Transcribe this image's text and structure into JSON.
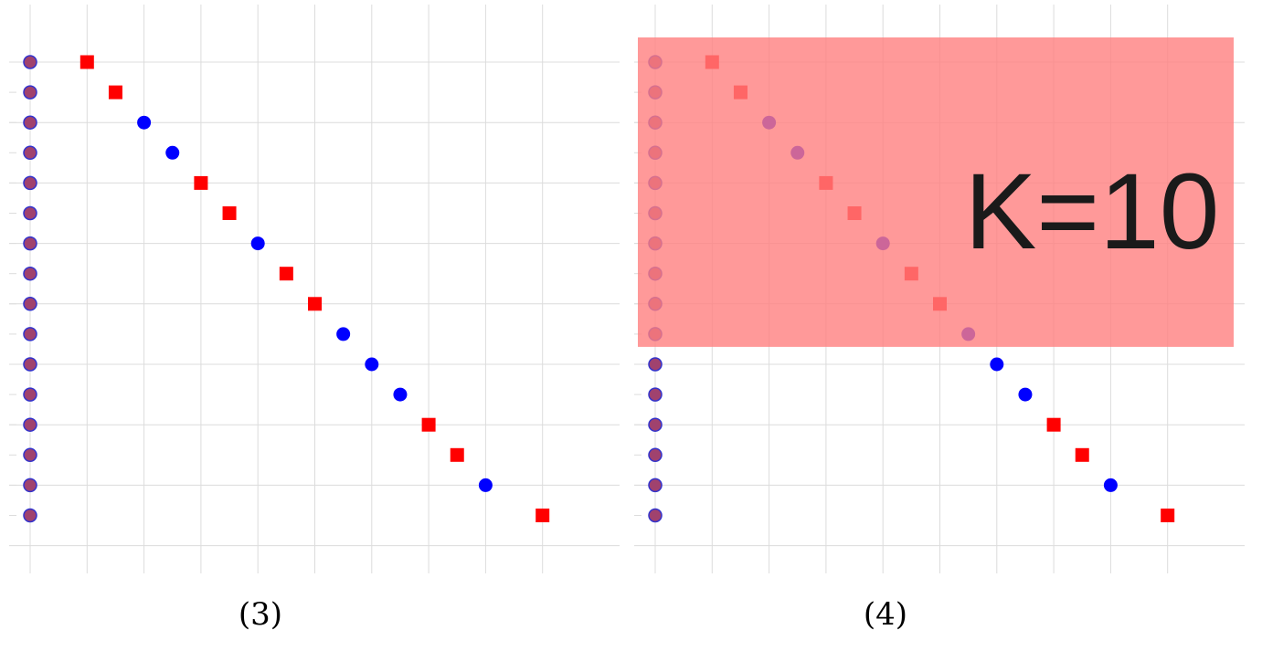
{
  "chart_data": [
    {
      "type": "scatter",
      "caption": "(3)",
      "rank_axis": [
        1,
        2,
        3,
        4,
        5,
        6,
        7,
        8,
        9,
        10,
        11,
        12,
        13,
        14,
        15,
        16
      ],
      "points": [
        {
          "x": 1,
          "y": 1,
          "marker": "square"
        },
        {
          "x": 1.5,
          "y": 2,
          "marker": "square"
        },
        {
          "x": 2,
          "y": 3,
          "marker": "circle"
        },
        {
          "x": 2.5,
          "y": 4,
          "marker": "circle"
        },
        {
          "x": 3,
          "y": 5,
          "marker": "square"
        },
        {
          "x": 3.5,
          "y": 6,
          "marker": "square"
        },
        {
          "x": 4,
          "y": 7,
          "marker": "circle"
        },
        {
          "x": 4.5,
          "y": 8,
          "marker": "square"
        },
        {
          "x": 5,
          "y": 9,
          "marker": "square"
        },
        {
          "x": 5.5,
          "y": 10,
          "marker": "circle"
        },
        {
          "x": 6,
          "y": 11,
          "marker": "circle"
        },
        {
          "x": 6.5,
          "y": 12,
          "marker": "circle"
        },
        {
          "x": 7,
          "y": 13,
          "marker": "square"
        },
        {
          "x": 7.5,
          "y": 14,
          "marker": "square"
        },
        {
          "x": 8,
          "y": 15,
          "marker": "circle"
        },
        {
          "x": 9,
          "y": 16,
          "marker": "square"
        }
      ],
      "highlight": null,
      "xlim": [
        0,
        10
      ],
      "ylim": [
        17,
        -1
      ],
      "grid": true
    },
    {
      "type": "scatter",
      "caption": "(4)",
      "rank_axis": [
        1,
        2,
        3,
        4,
        5,
        6,
        7,
        8,
        9,
        10,
        11,
        12,
        13,
        14,
        15,
        16
      ],
      "points": [
        {
          "x": 1,
          "y": 1,
          "marker": "square"
        },
        {
          "x": 1.5,
          "y": 2,
          "marker": "square"
        },
        {
          "x": 2,
          "y": 3,
          "marker": "circle"
        },
        {
          "x": 2.5,
          "y": 4,
          "marker": "circle"
        },
        {
          "x": 3,
          "y": 5,
          "marker": "square"
        },
        {
          "x": 3.5,
          "y": 6,
          "marker": "square"
        },
        {
          "x": 4,
          "y": 7,
          "marker": "circle"
        },
        {
          "x": 4.5,
          "y": 8,
          "marker": "square"
        },
        {
          "x": 5,
          "y": 9,
          "marker": "square"
        },
        {
          "x": 5.5,
          "y": 10,
          "marker": "circle"
        },
        {
          "x": 6,
          "y": 11,
          "marker": "circle"
        },
        {
          "x": 6.5,
          "y": 12,
          "marker": "circle"
        },
        {
          "x": 7,
          "y": 13,
          "marker": "square"
        },
        {
          "x": 7.5,
          "y": 14,
          "marker": "square"
        },
        {
          "x": 8,
          "y": 15,
          "marker": "circle"
        },
        {
          "x": 9,
          "y": 16,
          "marker": "square"
        }
      ],
      "highlight": {
        "label": "K=10",
        "k": 10
      },
      "xlim": [
        0,
        10
      ],
      "ylim": [
        17,
        -1
      ],
      "grid": true
    }
  ],
  "colors": {
    "square": "#ff0000",
    "circle": "#0000ff",
    "rank_fill": "#a0426e",
    "rank_stroke": "#3333cc",
    "grid": "#dcdcdc",
    "highlight": "#ff7f7f",
    "ktext": "#1a1a1a"
  }
}
